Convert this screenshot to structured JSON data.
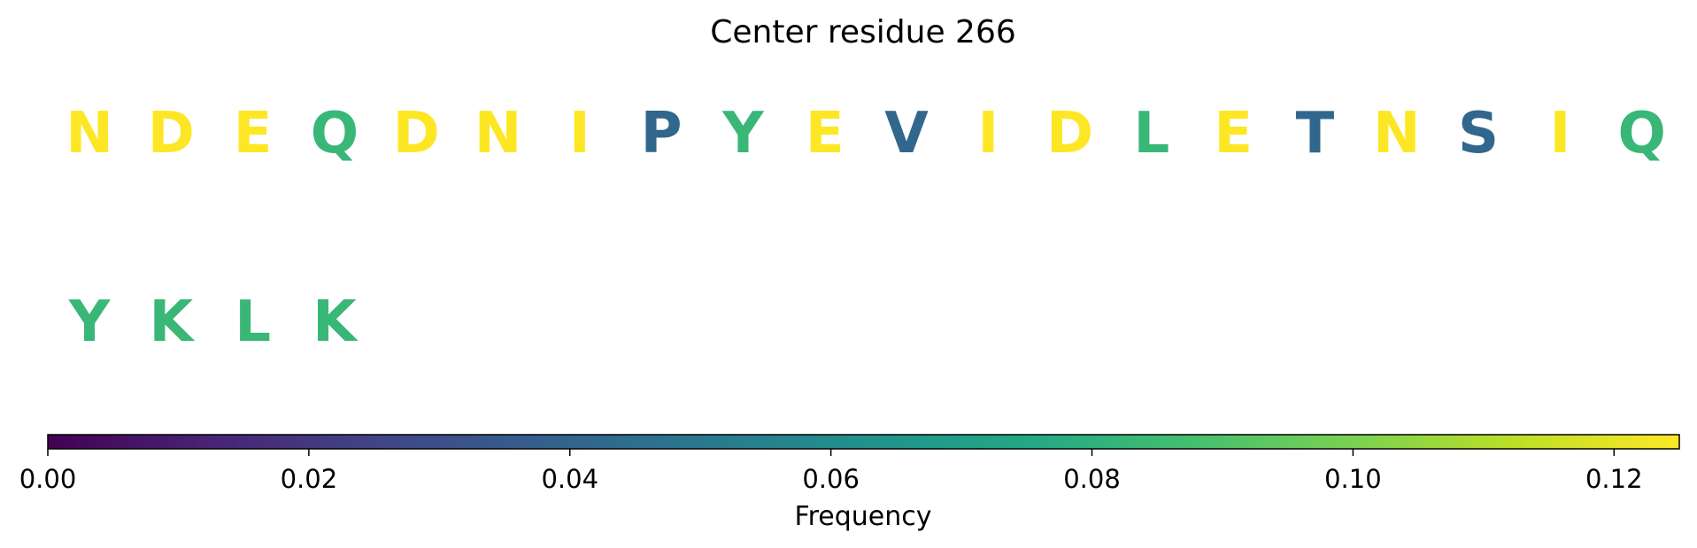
{
  "chart_data": {
    "type": "table",
    "title": "Center residue 266",
    "rows": [
      [
        {
          "residue": "N",
          "frequency": 0.125
        },
        {
          "residue": "D",
          "frequency": 0.125
        },
        {
          "residue": "E",
          "frequency": 0.125
        },
        {
          "residue": "Q",
          "frequency": 0.0833
        },
        {
          "residue": "D",
          "frequency": 0.125
        },
        {
          "residue": "N",
          "frequency": 0.125
        },
        {
          "residue": "I",
          "frequency": 0.125
        },
        {
          "residue": "P",
          "frequency": 0.0417
        },
        {
          "residue": "Y",
          "frequency": 0.0833
        },
        {
          "residue": "E",
          "frequency": 0.125
        },
        {
          "residue": "V",
          "frequency": 0.0417
        },
        {
          "residue": "I",
          "frequency": 0.125
        },
        {
          "residue": "D",
          "frequency": 0.125
        },
        {
          "residue": "L",
          "frequency": 0.0833
        },
        {
          "residue": "E",
          "frequency": 0.125
        },
        {
          "residue": "T",
          "frequency": 0.0417
        },
        {
          "residue": "N",
          "frequency": 0.125
        },
        {
          "residue": "S",
          "frequency": 0.0417
        },
        {
          "residue": "I",
          "frequency": 0.125
        },
        {
          "residue": "Q",
          "frequency": 0.0833
        }
      ],
      [
        {
          "residue": "Y",
          "frequency": 0.0833
        },
        {
          "residue": "K",
          "frequency": 0.0833
        },
        {
          "residue": "L",
          "frequency": 0.0833
        },
        {
          "residue": "K",
          "frequency": 0.0833
        }
      ]
    ],
    "colorbar": {
      "label": "Frequency",
      "colormap": "viridis",
      "range": [
        0,
        0.125
      ],
      "ticks": [
        0.0,
        0.02,
        0.04,
        0.06,
        0.08,
        0.1,
        0.12
      ],
      "tick_labels": [
        "0.00",
        "0.02",
        "0.04",
        "0.06",
        "0.08",
        "0.10",
        "0.12"
      ]
    }
  }
}
